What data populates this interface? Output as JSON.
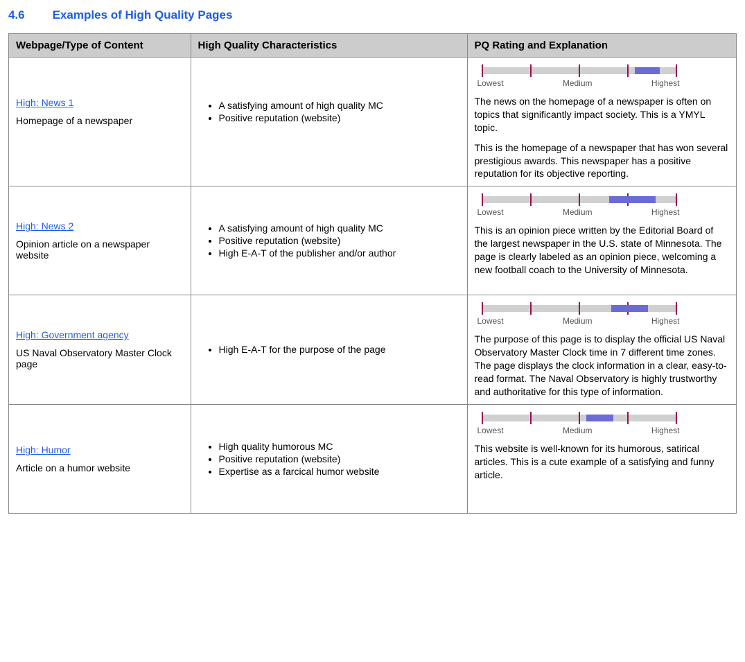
{
  "heading": {
    "number": "4.6",
    "title": "Examples of High Quality Pages"
  },
  "columns": [
    "Webpage/Type of Content",
    "High Quality Characteristics",
    "PQ Rating and Explanation"
  ],
  "slider": {
    "labels": [
      "Lowest",
      "Medium",
      "Highest"
    ],
    "tick_color": "#9a0b55",
    "track_color": "#d0d0d0",
    "fill_color": "#6b6bd6",
    "ticks_pct": [
      0,
      25,
      50,
      75,
      100
    ]
  },
  "rows": [
    {
      "link": "High: News 1",
      "desc": "Homepage of a newspaper",
      "bullets": [
        "A satisfying amount of high quality MC",
        "Positive reputation (website)"
      ],
      "slider_fill": {
        "start_pct": 79,
        "end_pct": 92
      },
      "explanation": [
        "The news on the homepage of a newspaper is often on topics that significantly impact society. This is a YMYL topic.",
        "This is the homepage of a newspaper that has won several prestigious awards.  This newspaper has a positive reputation for its objective reporting."
      ]
    },
    {
      "link": "High: News 2",
      "desc": "Opinion article on a newspaper website",
      "bullets": [
        "A satisfying amount of high quality MC",
        "Positive reputation (website)",
        "High E-A-T of the publisher and/or author"
      ],
      "slider_fill": {
        "start_pct": 66,
        "end_pct": 90
      },
      "explanation": [
        "This is an opinion piece written by the Editorial Board of the largest newspaper in the U.S. state of Minnesota.  The page is clearly labeled as an opinion piece, welcoming a new football coach to the University of Minnesota."
      ]
    },
    {
      "link": "High: Government agency",
      "desc": "US Naval Observatory Master Clock page",
      "bullets": [
        "High E-A-T for the purpose of the page"
      ],
      "slider_fill": {
        "start_pct": 67,
        "end_pct": 86
      },
      "explanation": [
        "The purpose of this page is to display the official US Naval Observatory Master Clock time in 7 different time zones.  The page displays the clock information in a clear, easy-to-read format.  The Naval Observatory is highly trustworthy and authoritative for this type of information."
      ]
    },
    {
      "link": "High: Humor",
      "desc": "Article on a humor website",
      "bullets": [
        "High quality humorous MC",
        "Positive reputation (website)",
        "Expertise as a farcical humor website"
      ],
      "slider_fill": {
        "start_pct": 54,
        "end_pct": 68
      },
      "explanation": [
        "This website is well-known for its humorous, satirical articles.  This is a cute example of a satisfying and funny article."
      ]
    }
  ]
}
